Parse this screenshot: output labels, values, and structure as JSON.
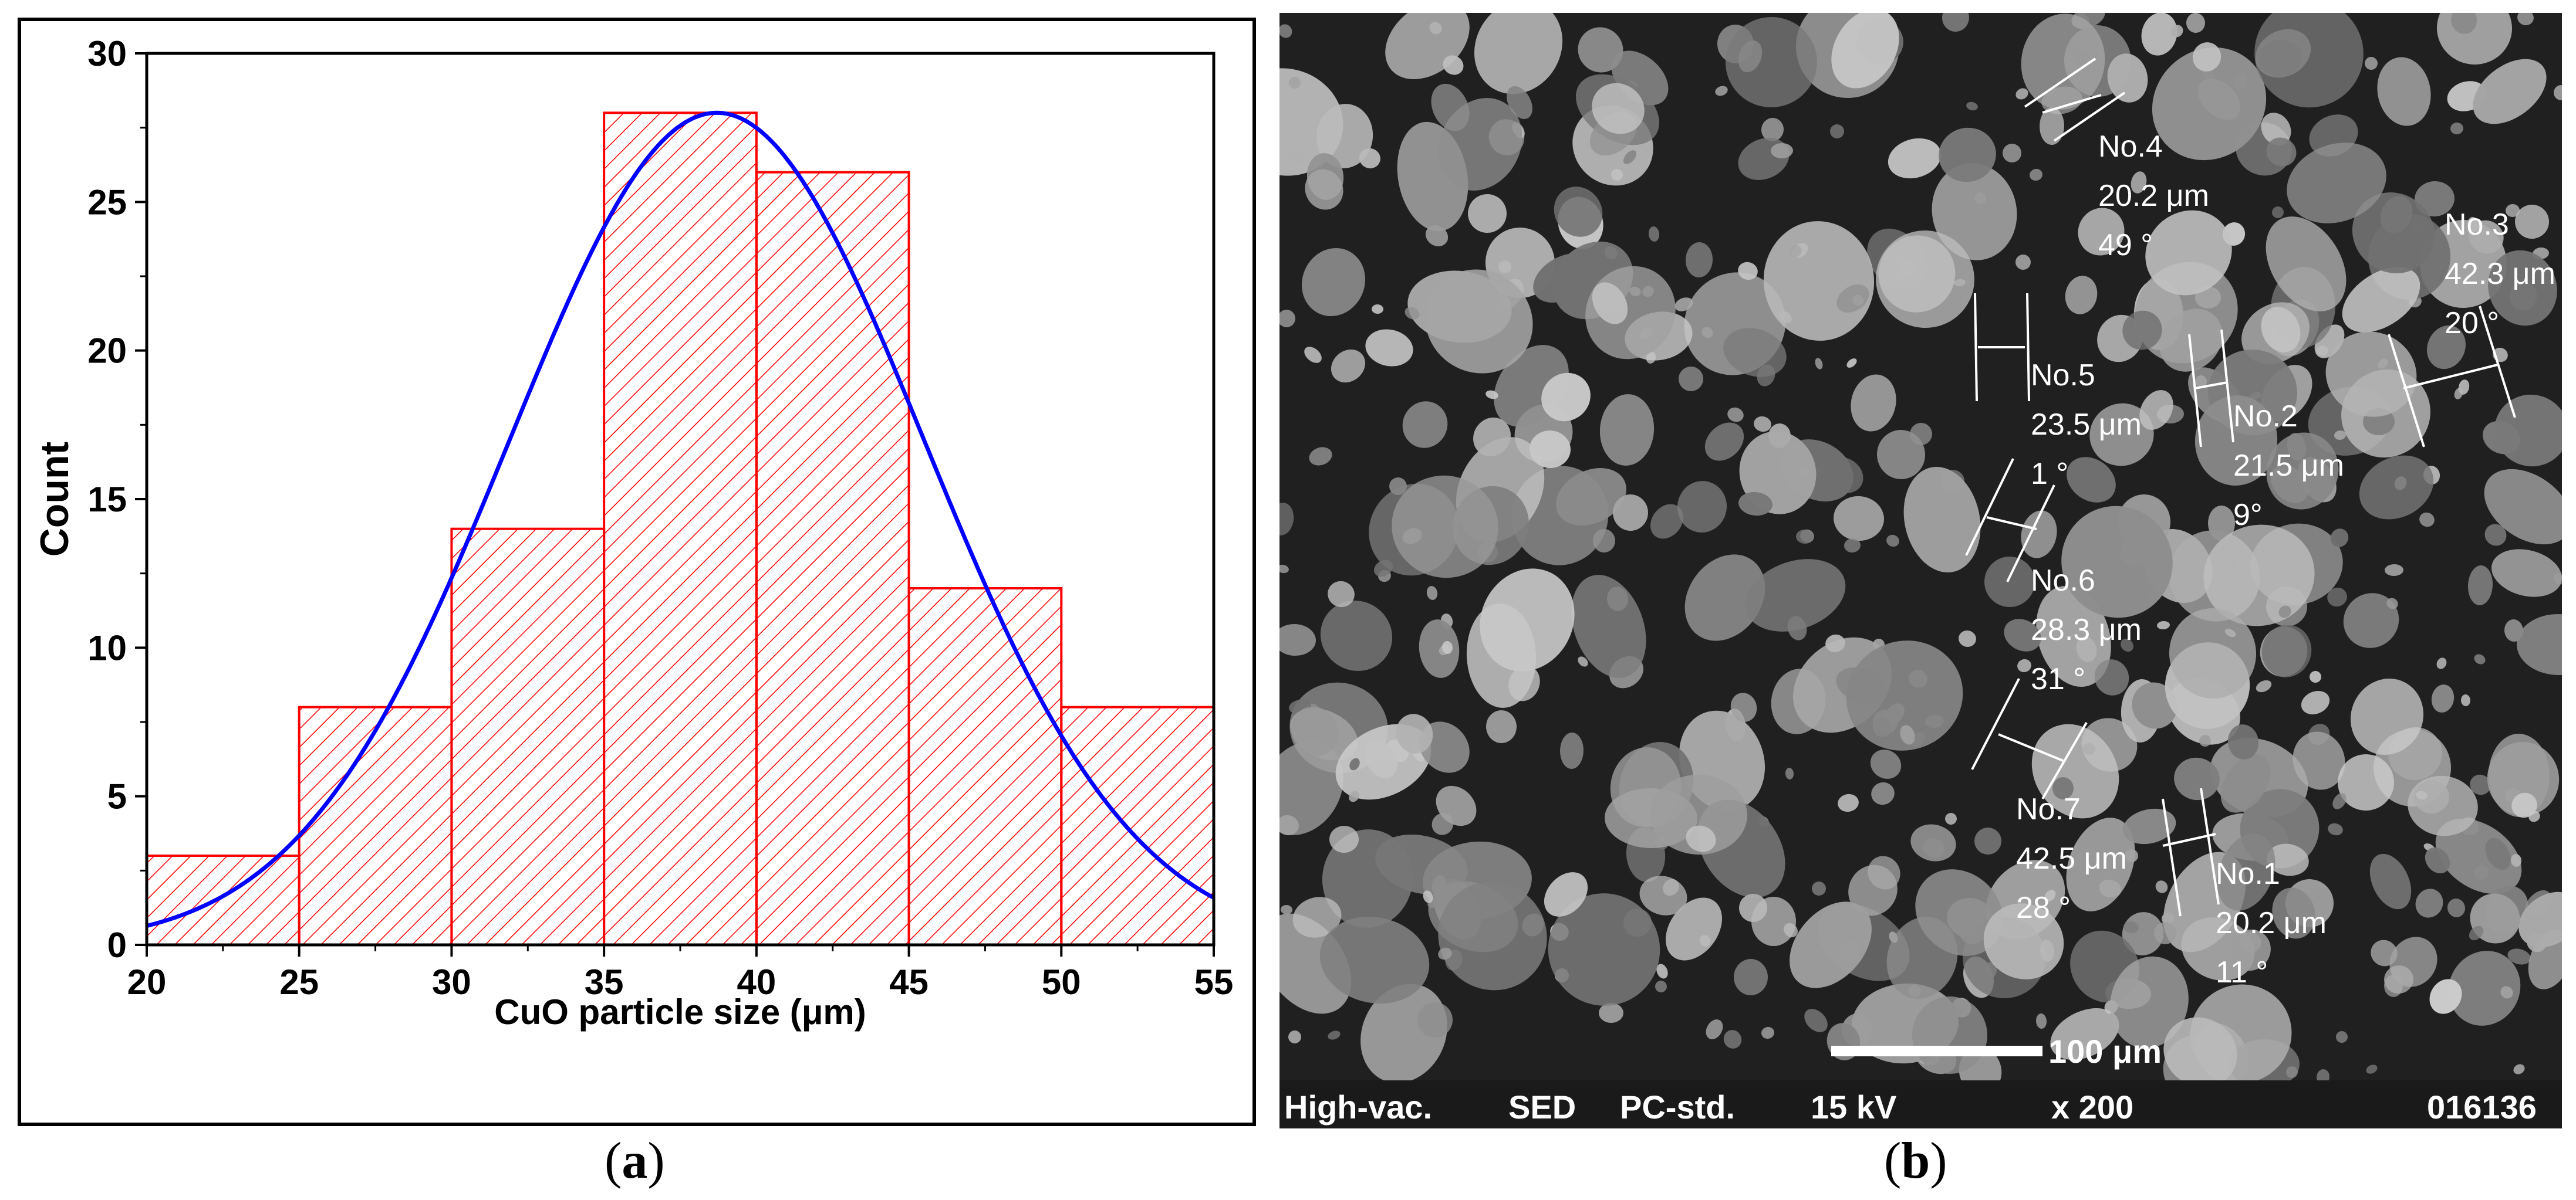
{
  "panels": {
    "a": {
      "label_open": "(",
      "label_letter": "a",
      "label_close": ")"
    },
    "b": {
      "label_open": "(",
      "label_letter": "b",
      "label_close": ")"
    }
  },
  "chart_data": {
    "type": "bar",
    "subtype": "histogram with fitted normal curve",
    "xlabel": "CuO particle size (μm)",
    "ylabel": "Count",
    "xlim": [
      20,
      55
    ],
    "ylim": [
      0,
      30
    ],
    "x_ticks": [
      20,
      25,
      30,
      35,
      40,
      45,
      50,
      55
    ],
    "y_ticks": [
      0,
      5,
      10,
      15,
      20,
      25,
      30
    ],
    "bins": [
      {
        "start": 20,
        "end": 25,
        "count": 3
      },
      {
        "start": 25,
        "end": 30,
        "count": 8
      },
      {
        "start": 30,
        "end": 35,
        "count": 14
      },
      {
        "start": 35,
        "end": 40,
        "count": 28
      },
      {
        "start": 40,
        "end": 45,
        "count": 26
      },
      {
        "start": 45,
        "end": 50,
        "count": 12
      },
      {
        "start": 50,
        "end": 55,
        "count": 8
      }
    ],
    "fit_curve": {
      "type": "normal",
      "peak_x": 38.7,
      "peak_y": 28,
      "sigma": 6.8,
      "color": "#0000ff"
    },
    "bar_color": "#ff0000",
    "bar_fill": "diagonal hatch",
    "grid": false
  },
  "sem_image": {
    "description_type": "SEM micrograph",
    "annotations": [
      {
        "id": "No.1",
        "size": "20.2 μm",
        "angle": "11 °"
      },
      {
        "id": "No.2",
        "size": "21.5 μm",
        "angle": "9°"
      },
      {
        "id": "No.3",
        "size": "42.3 μm",
        "angle": "20 °"
      },
      {
        "id": "No.4",
        "size": "20.2 μm",
        "angle": "49 °"
      },
      {
        "id": "No.5",
        "size": "23.5 μm",
        "angle": "1 °"
      },
      {
        "id": "No.6",
        "size": "28.3 μm",
        "angle": "31 °"
      },
      {
        "id": "No.7",
        "size": "42.5 μm",
        "angle": "28 °"
      }
    ],
    "scale_bar": "100 μm",
    "info_bar": {
      "vacuum": "High-vac.",
      "detector": "SED",
      "mode": "PC-std.",
      "voltage": "15 kV",
      "magnification": "x 200",
      "image_number": "016136"
    }
  }
}
